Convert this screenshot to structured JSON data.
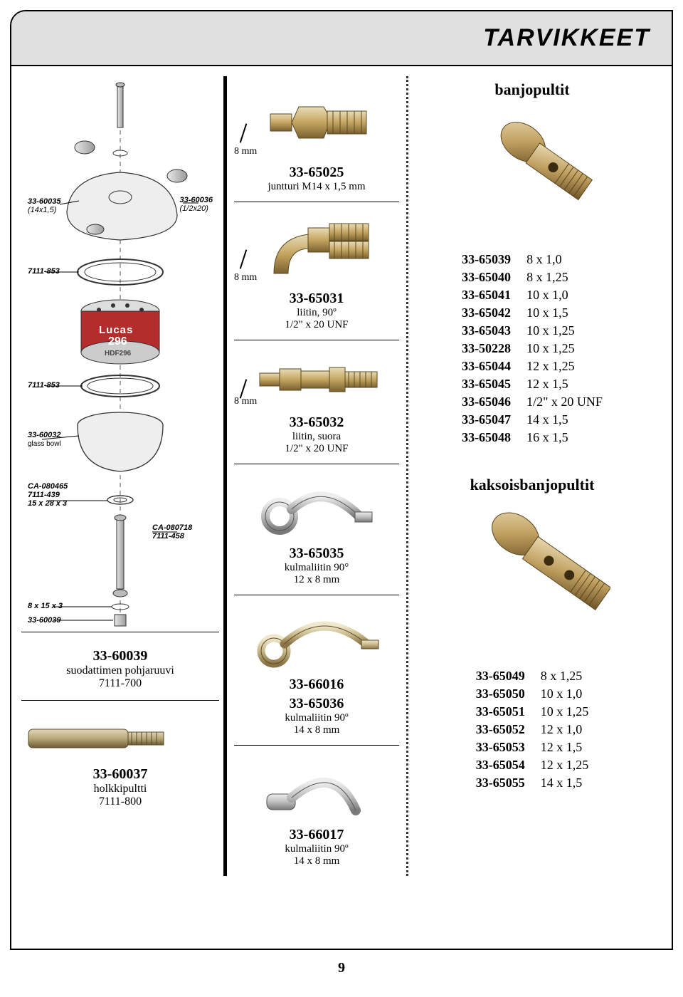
{
  "page_title": "TARVIKKEET",
  "page_number": "9",
  "exploded_labels": {
    "top_left_partno": "33-60035",
    "top_left_spec": "(14x1,5)",
    "top_right_partno": "33-60036",
    "top_right_spec": "(1/2x20)",
    "seal1": "7111-853",
    "filter_brand": "Lucas",
    "filter_model": "296",
    "filter_code": "HDF296",
    "seal2": "7111-853",
    "glass_bowl_partno": "33-60032",
    "glass_bowl_text": "glass bowl",
    "gasket1_a": "CA-080465",
    "gasket1_b": "7111-439",
    "gasket1_dim": "15 x 28 x 3",
    "gasket2_a": "CA-080718",
    "gasket2_b": "7111-458",
    "washer_dim": "8 x 15 x 3",
    "bottom_nut": "33-60039"
  },
  "left_items": [
    {
      "part_no": "33-60039",
      "desc1": "suodattimen pohjaruuvi",
      "desc2": "7111-700"
    },
    {
      "part_no": "33-60037",
      "desc1": "holkkipultti",
      "desc2": "7111-800"
    }
  ],
  "mid_items": [
    {
      "dim": "8 mm",
      "part_no": "33-65025",
      "desc1": "juntturi M14 x 1,5 mm",
      "desc2": ""
    },
    {
      "dim": "8 mm",
      "part_no": "33-65031",
      "desc1": "liitin, 90º",
      "desc2": "1/2\" x 20 UNF"
    },
    {
      "dim": "8 mm",
      "part_no": "33-65032",
      "desc1": "liitin, suora",
      "desc2": "1/2\" x 20 UNF"
    },
    {
      "dim": "",
      "part_no": "33-65035",
      "desc1": "kulmaliitin 90°",
      "desc2": "12 x 8 mm"
    },
    {
      "dim": "",
      "part_no": "33-66016",
      "part_no_b": "33-65036",
      "desc1": "kulmaliitin 90º",
      "desc2": "14 x 8 mm"
    },
    {
      "dim": "",
      "part_no": "33-66017",
      "desc1": "kulmaliitin 90º",
      "desc2": "14 x 8 mm"
    }
  ],
  "right": {
    "banjo_title": "banjopultit",
    "banjo_rows": [
      [
        "33-65039",
        "8 x 1,0"
      ],
      [
        "33-65040",
        "8 x 1,25"
      ],
      [
        "33-65041",
        "10 x 1,0"
      ],
      [
        "33-65042",
        "10 x 1,5"
      ],
      [
        "33-65043",
        "10 x 1,25"
      ],
      [
        "33-50228",
        "10 x 1,25"
      ],
      [
        "33-65044",
        "12 x 1,25"
      ],
      [
        "33-65045",
        "12 x 1,5"
      ],
      [
        "33-65046",
        "1/2\" x 20 UNF"
      ],
      [
        "33-65047",
        "14 x 1,5"
      ],
      [
        "33-65048",
        "16 x 1,5"
      ]
    ],
    "double_banjo_title": "kaksoisbanjopultit",
    "double_banjo_rows": [
      [
        "33-65049",
        "8 x 1,25"
      ],
      [
        "33-65050",
        "10 x 1,0"
      ],
      [
        "33-65051",
        "10 x 1,25"
      ],
      [
        "33-65052",
        "12 x 1,0"
      ],
      [
        "33-65053",
        "12 x 1,5"
      ],
      [
        "33-65054",
        "12 x 1,25"
      ],
      [
        "33-65055",
        "14 x 1,5"
      ]
    ]
  },
  "colors": {
    "metal_light": "#d7c9a8",
    "metal_mid": "#b09a6e",
    "metal_dark": "#7a6840",
    "steel_light": "#d8d8d8",
    "steel_dark": "#8a8a8a",
    "brass": "#c4a560",
    "filter_red": "#b52c2c"
  }
}
